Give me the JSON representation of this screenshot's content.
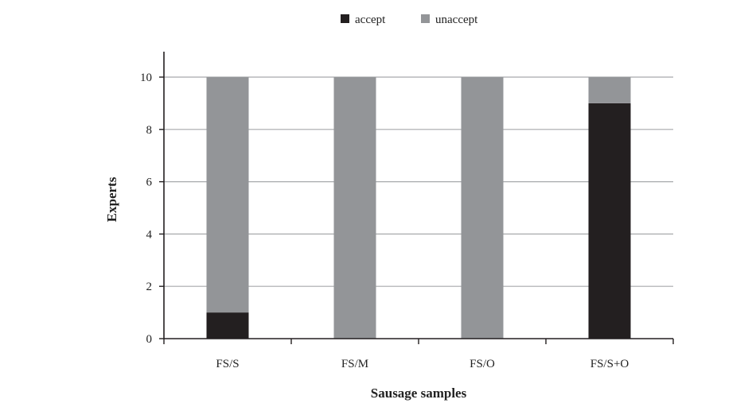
{
  "chart_data": {
    "type": "bar",
    "stacked": true,
    "categories": [
      "FS/S",
      "FS/M",
      "FS/O",
      "FS/S+O"
    ],
    "series": [
      {
        "name": "accept",
        "values": [
          1,
          0,
          0,
          9
        ],
        "color": "#231f20"
      },
      {
        "name": "unaccept",
        "values": [
          9,
          10,
          10,
          1
        ],
        "color": "#939598"
      }
    ],
    "xlabel": "Sausage samples",
    "ylabel": "Experts",
    "ylim": [
      0,
      10
    ],
    "yticks": [
      0,
      2,
      4,
      6,
      8,
      10
    ],
    "grid": true,
    "legend_position": "top"
  }
}
